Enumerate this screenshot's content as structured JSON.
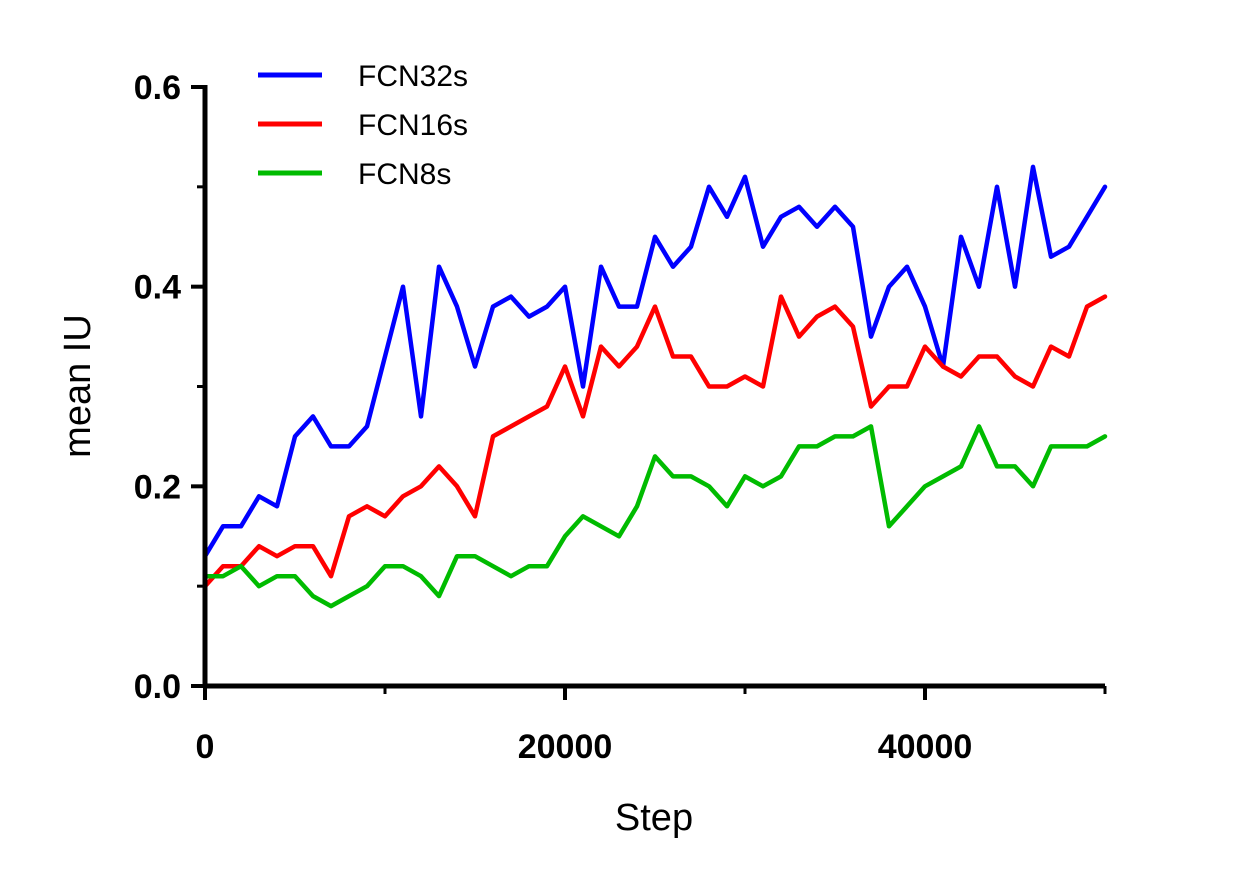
{
  "chart_data": {
    "type": "line",
    "title": "",
    "xlabel": "Step",
    "ylabel": "mean IU",
    "xlim": [
      0,
      50000
    ],
    "ylim": [
      0,
      0.6
    ],
    "x_ticks": [
      0,
      20000,
      40000
    ],
    "x_tick_labels": [
      "0",
      "20000",
      "40000"
    ],
    "y_ticks": [
      0.0,
      0.2,
      0.4,
      0.6
    ],
    "y_tick_labels": [
      "0.0",
      "0.2",
      "0.4",
      "0.6"
    ],
    "grid": false,
    "legend_position": "top-left",
    "x": [
      0,
      1000,
      2000,
      3000,
      4000,
      5000,
      6000,
      7000,
      8000,
      9000,
      10000,
      11000,
      12000,
      13000,
      14000,
      15000,
      16000,
      17000,
      18000,
      19000,
      20000,
      21000,
      22000,
      23000,
      24000,
      25000,
      26000,
      27000,
      28000,
      29000,
      30000,
      31000,
      32000,
      33000,
      34000,
      35000,
      36000,
      37000,
      38000,
      39000,
      40000,
      41000,
      42000,
      43000,
      44000,
      45000,
      46000,
      47000,
      48000,
      49000,
      50000
    ],
    "series": [
      {
        "name": "FCN32s",
        "color": "#0000ff",
        "values": [
          0.13,
          0.16,
          0.16,
          0.19,
          0.18,
          0.25,
          0.27,
          0.24,
          0.24,
          0.26,
          0.33,
          0.4,
          0.27,
          0.42,
          0.38,
          0.32,
          0.38,
          0.39,
          0.37,
          0.38,
          0.4,
          0.3,
          0.42,
          0.38,
          0.38,
          0.45,
          0.42,
          0.44,
          0.5,
          0.47,
          0.51,
          0.44,
          0.47,
          0.48,
          0.46,
          0.48,
          0.46,
          0.35,
          0.4,
          0.42,
          0.38,
          0.32,
          0.45,
          0.4,
          0.5,
          0.4,
          0.52,
          0.43,
          0.44,
          0.47,
          0.5
        ]
      },
      {
        "name": "FCN16s",
        "color": "#ff0000",
        "values": [
          0.1,
          0.12,
          0.12,
          0.14,
          0.13,
          0.14,
          0.14,
          0.11,
          0.17,
          0.18,
          0.17,
          0.19,
          0.2,
          0.22,
          0.2,
          0.17,
          0.25,
          0.26,
          0.27,
          0.28,
          0.32,
          0.27,
          0.34,
          0.32,
          0.34,
          0.38,
          0.33,
          0.33,
          0.3,
          0.3,
          0.31,
          0.3,
          0.39,
          0.35,
          0.37,
          0.38,
          0.36,
          0.28,
          0.3,
          0.3,
          0.34,
          0.32,
          0.31,
          0.33,
          0.33,
          0.31,
          0.3,
          0.34,
          0.33,
          0.38,
          0.39
        ]
      },
      {
        "name": "FCN8s",
        "color": "#00bb00",
        "values": [
          0.11,
          0.11,
          0.12,
          0.1,
          0.11,
          0.11,
          0.09,
          0.08,
          0.09,
          0.1,
          0.12,
          0.12,
          0.11,
          0.09,
          0.13,
          0.13,
          0.12,
          0.11,
          0.12,
          0.12,
          0.15,
          0.17,
          0.16,
          0.15,
          0.18,
          0.23,
          0.21,
          0.21,
          0.2,
          0.18,
          0.21,
          0.2,
          0.21,
          0.24,
          0.24,
          0.25,
          0.25,
          0.26,
          0.16,
          0.18,
          0.2,
          0.21,
          0.22,
          0.26,
          0.22,
          0.22,
          0.2,
          0.24,
          0.24,
          0.24,
          0.25
        ]
      }
    ]
  }
}
